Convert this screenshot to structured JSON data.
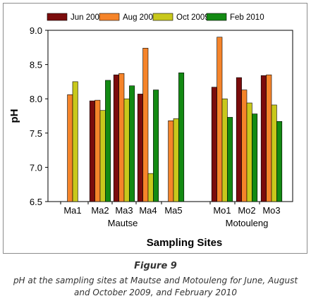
{
  "chart_data": {
    "type": "bar",
    "ylabel": "pH",
    "xlabel": "Sampling Sites",
    "ylim": [
      6.5,
      9.0
    ],
    "yticks": [
      "6.5",
      "7.0",
      "7.5",
      "8.0",
      "8.5",
      "9.0"
    ],
    "categories": [
      "Ma1",
      "Ma2",
      "Ma3",
      "Ma4",
      "Ma5",
      "Mo1",
      "Mo2",
      "Mo3"
    ],
    "groups": [
      {
        "label": "Mautse",
        "categories": [
          "Ma1",
          "Ma2",
          "Ma3",
          "Ma4",
          "Ma5"
        ]
      },
      {
        "label": "Motouleng",
        "categories": [
          "Mo1",
          "Mo2",
          "Mo3"
        ]
      }
    ],
    "legend_position": "top",
    "grid": false,
    "series": [
      {
        "name": "Jun 2009",
        "color": "#7b0c0c",
        "values": [
          null,
          7.97,
          8.35,
          8.07,
          null,
          8.17,
          8.31,
          8.34
        ]
      },
      {
        "name": "Aug 2009",
        "color": "#f5842a",
        "values": [
          8.06,
          7.98,
          8.37,
          8.74,
          7.68,
          8.9,
          8.13,
          8.35
        ]
      },
      {
        "name": "Oct 2009",
        "color": "#c8c81c",
        "values": [
          8.25,
          7.83,
          8.0,
          6.91,
          7.71,
          8.0,
          7.94,
          7.91
        ]
      },
      {
        "name": "Feb 2010",
        "color": "#138a13",
        "values": [
          null,
          8.27,
          8.19,
          8.13,
          8.38,
          7.73,
          7.78,
          7.67
        ]
      }
    ]
  },
  "caption": {
    "figure_label": "Figure 9",
    "text": "pH at the sampling sites at Mautse and Motouleng for June, August and October 2009, and February 2010"
  }
}
